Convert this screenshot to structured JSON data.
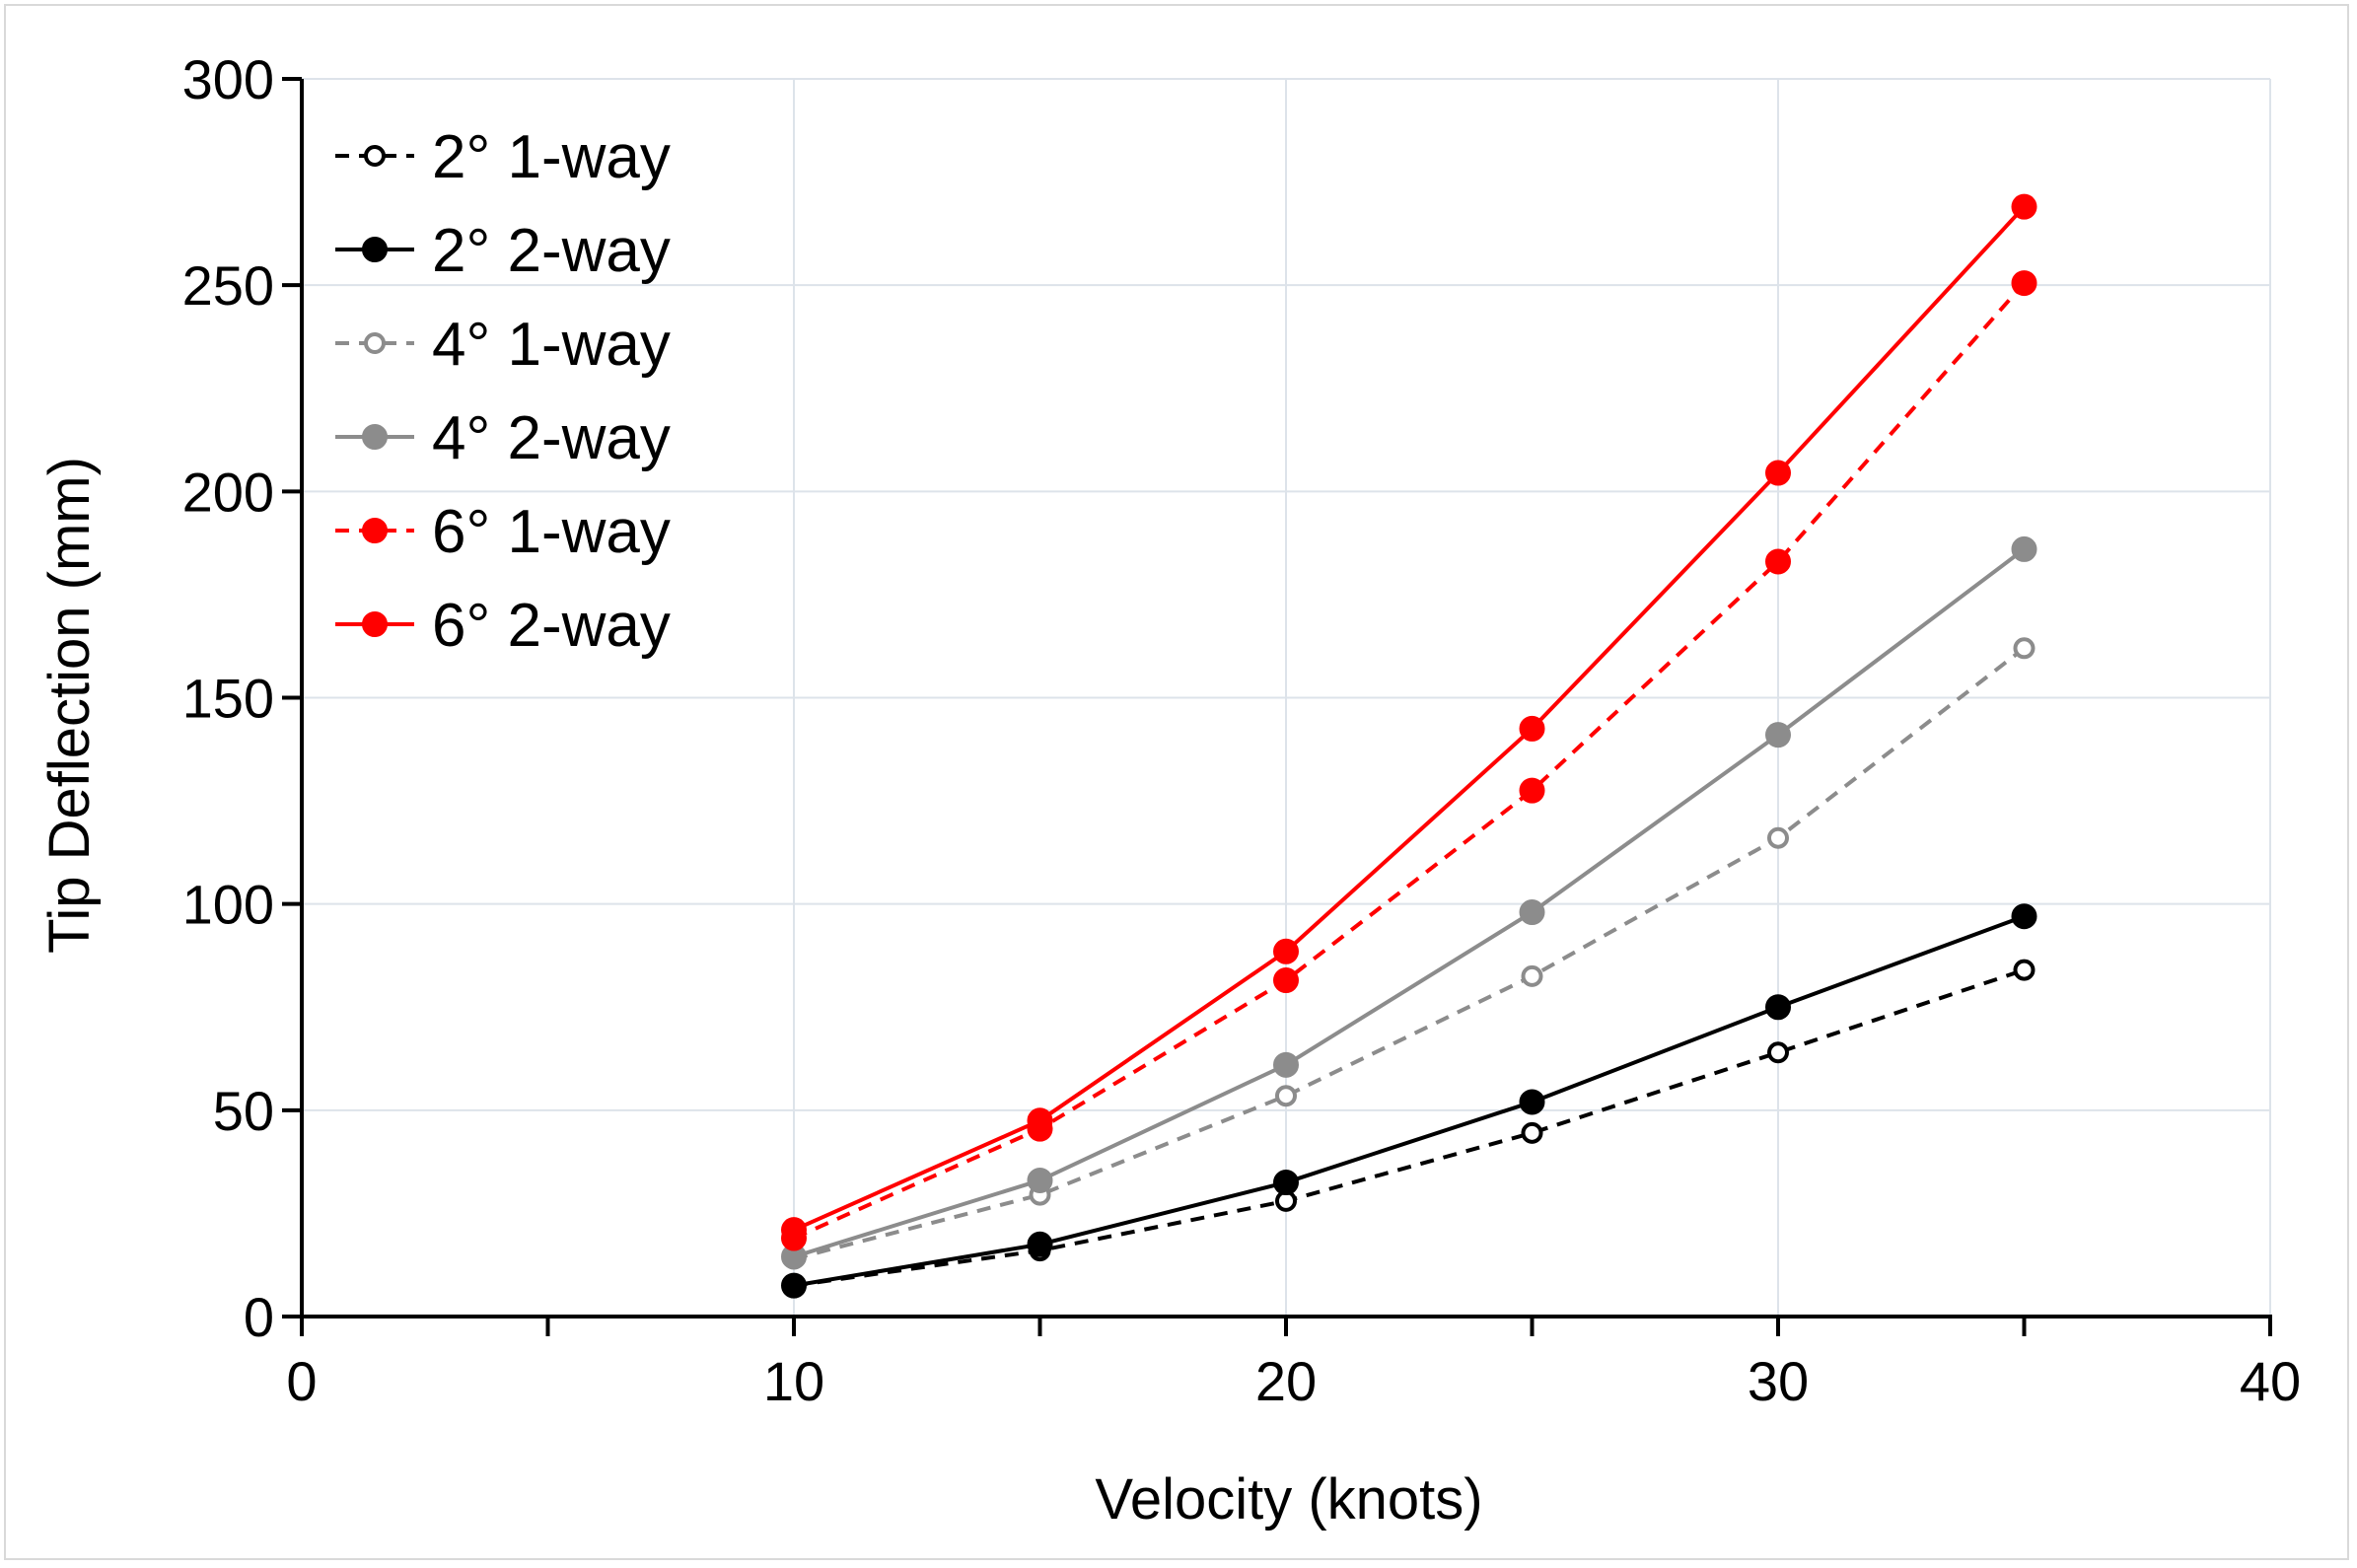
{
  "chart_data": {
    "type": "line",
    "title": "",
    "xlabel": "Velocity (knots)",
    "ylabel": "Tip Deflection (mm)",
    "xlim": [
      0,
      40
    ],
    "ylim": [
      0,
      300
    ],
    "x_ticks": [
      0,
      10,
      20,
      30,
      40
    ],
    "y_ticks": [
      0,
      50,
      100,
      150,
      200,
      250,
      300
    ],
    "grid": true,
    "legend_position": "top-left",
    "x": [
      10,
      15,
      20,
      25,
      30,
      35
    ],
    "series": [
      {
        "name": "2° 1-way",
        "values": [
          7.5,
          16,
          28,
          44.5,
          64,
          84
        ],
        "color": "#000000",
        "dashed": true,
        "marker": "open"
      },
      {
        "name": "2° 2-way",
        "values": [
          7.5,
          17.5,
          32.5,
          52,
          75,
          97
        ],
        "color": "#000000",
        "dashed": false,
        "marker": "filled"
      },
      {
        "name": "4° 1-way",
        "values": [
          14,
          29.5,
          53.5,
          82.5,
          116,
          162
        ],
        "color": "#8c8c8c",
        "dashed": true,
        "marker": "open"
      },
      {
        "name": "4° 2-way",
        "values": [
          14.5,
          33,
          61,
          98,
          141,
          186
        ],
        "color": "#8c8c8c",
        "dashed": false,
        "marker": "filled"
      },
      {
        "name": "6° 1-way",
        "values": [
          19,
          45.5,
          81.5,
          127.5,
          183,
          250.5
        ],
        "color": "#ff0000",
        "dashed": true,
        "marker": "filled"
      },
      {
        "name": "6° 2-way",
        "values": [
          21,
          47.5,
          88.5,
          142.5,
          204.5,
          269
        ],
        "color": "#ff0000",
        "dashed": false,
        "marker": "filled"
      }
    ]
  }
}
